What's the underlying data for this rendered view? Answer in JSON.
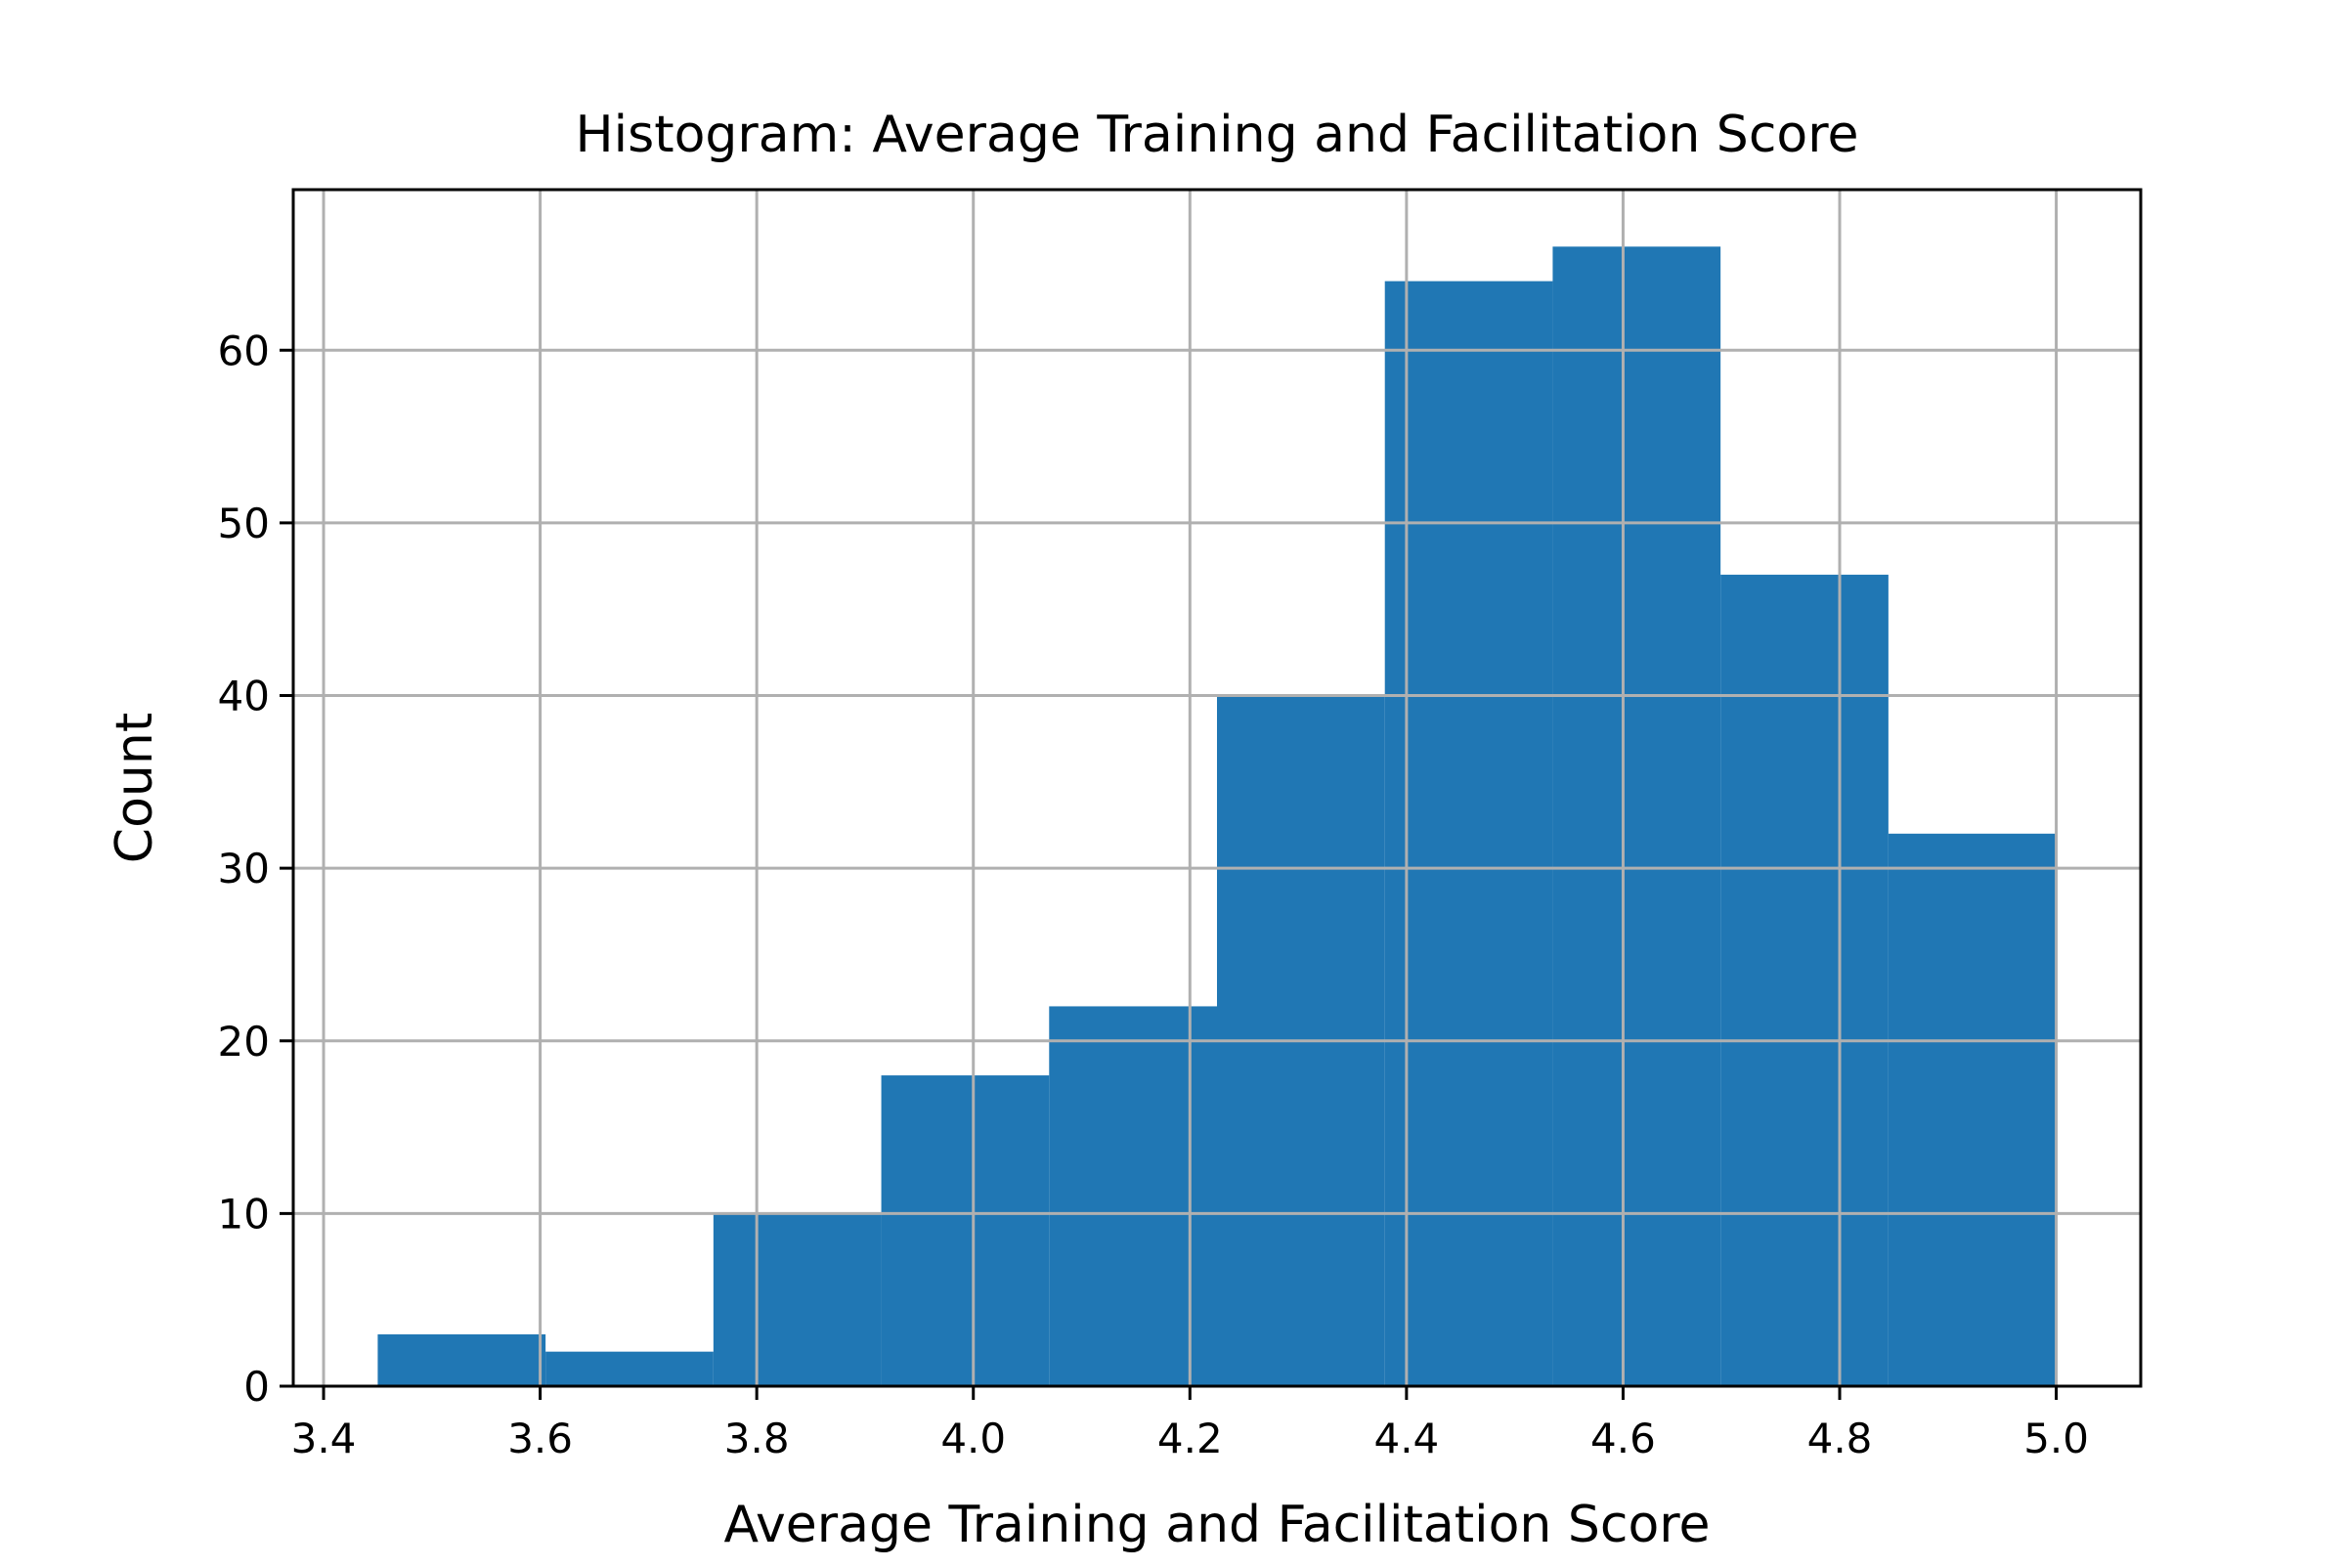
{
  "chart_data": {
    "type": "bar",
    "title": "Histogram: Average Training and Facilitation Score",
    "xlabel": "Average Training and Facilitation Score",
    "ylabel": "Count",
    "xlim": [
      3.372,
      5.078
    ],
    "ylim": [
      0,
      69.3
    ],
    "grid": true,
    "bar_color": "#2077b4",
    "grid_color": "#b0b0b0",
    "x_ticks": [
      {
        "value": 3.4,
        "label": "3.4"
      },
      {
        "value": 3.6,
        "label": "3.6"
      },
      {
        "value": 3.8,
        "label": "3.8"
      },
      {
        "value": 4.0,
        "label": "4.0"
      },
      {
        "value": 4.2,
        "label": "4.2"
      },
      {
        "value": 4.4,
        "label": "4.4"
      },
      {
        "value": 4.6,
        "label": "4.6"
      },
      {
        "value": 4.8,
        "label": "4.8"
      },
      {
        "value": 5.0,
        "label": "5.0"
      }
    ],
    "y_ticks": [
      {
        "value": 0,
        "label": "0"
      },
      {
        "value": 10,
        "label": "10"
      },
      {
        "value": 20,
        "label": "20"
      },
      {
        "value": 30,
        "label": "30"
      },
      {
        "value": 40,
        "label": "40"
      },
      {
        "value": 50,
        "label": "50"
      },
      {
        "value": 60,
        "label": "60"
      }
    ],
    "bins": [
      {
        "x0": 3.45,
        "x1": 3.605,
        "count": 3
      },
      {
        "x0": 3.605,
        "x1": 3.76,
        "count": 2
      },
      {
        "x0": 3.76,
        "x1": 3.915,
        "count": 10
      },
      {
        "x0": 3.915,
        "x1": 4.07,
        "count": 18
      },
      {
        "x0": 4.07,
        "x1": 4.225,
        "count": 22
      },
      {
        "x0": 4.225,
        "x1": 4.38,
        "count": 40
      },
      {
        "x0": 4.38,
        "x1": 4.535,
        "count": 64
      },
      {
        "x0": 4.535,
        "x1": 4.69,
        "count": 66
      },
      {
        "x0": 4.69,
        "x1": 4.845,
        "count": 47
      },
      {
        "x0": 4.845,
        "x1": 5.0,
        "count": 32
      }
    ]
  }
}
